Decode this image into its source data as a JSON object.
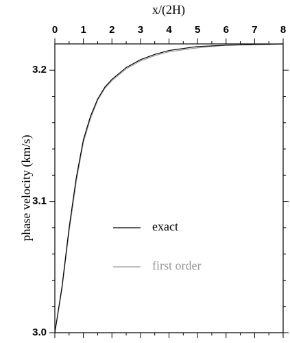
{
  "chart_data": {
    "type": "line",
    "xlabel": "x/(2H)",
    "ylabel": "phase velocity (km/s)",
    "x": [
      0,
      0.25,
      0.5,
      0.75,
      1,
      1.25,
      1.5,
      1.75,
      2,
      2.5,
      3,
      3.5,
      4,
      5,
      6,
      7,
      8
    ],
    "series": [
      {
        "name": "exact",
        "color": "#000000",
        "values": [
          3.0,
          3.035,
          3.08,
          3.118,
          3.147,
          3.165,
          3.178,
          3.187,
          3.193,
          3.202,
          3.208,
          3.212,
          3.215,
          3.218,
          3.219,
          3.2195,
          3.22
        ]
      },
      {
        "name": "first order",
        "color": "#999999",
        "values": [
          3.0,
          3.033,
          3.077,
          3.115,
          3.145,
          3.163,
          3.177,
          3.186,
          3.192,
          3.201,
          3.207,
          3.211,
          3.214,
          3.217,
          3.219,
          3.2195,
          3.22
        ]
      }
    ],
    "xlim": [
      0,
      8
    ],
    "xticks": [
      0,
      1,
      2,
      3,
      4,
      5,
      6,
      7,
      8
    ],
    "xminorticks": [
      0.5,
      1.5,
      2.5,
      3.5,
      4.5,
      5.5,
      6.5,
      7.5
    ],
    "ylim": [
      3.0,
      3.22
    ],
    "yticks": [
      {
        "value": 3.0,
        "label": "3.0"
      },
      3.1,
      3.2
    ],
    "yminorticks": [
      3.02,
      3.04,
      3.06,
      3.08,
      3.12,
      3.14,
      3.16,
      3.18
    ],
    "xaxis_position": "top",
    "legend": "center"
  }
}
